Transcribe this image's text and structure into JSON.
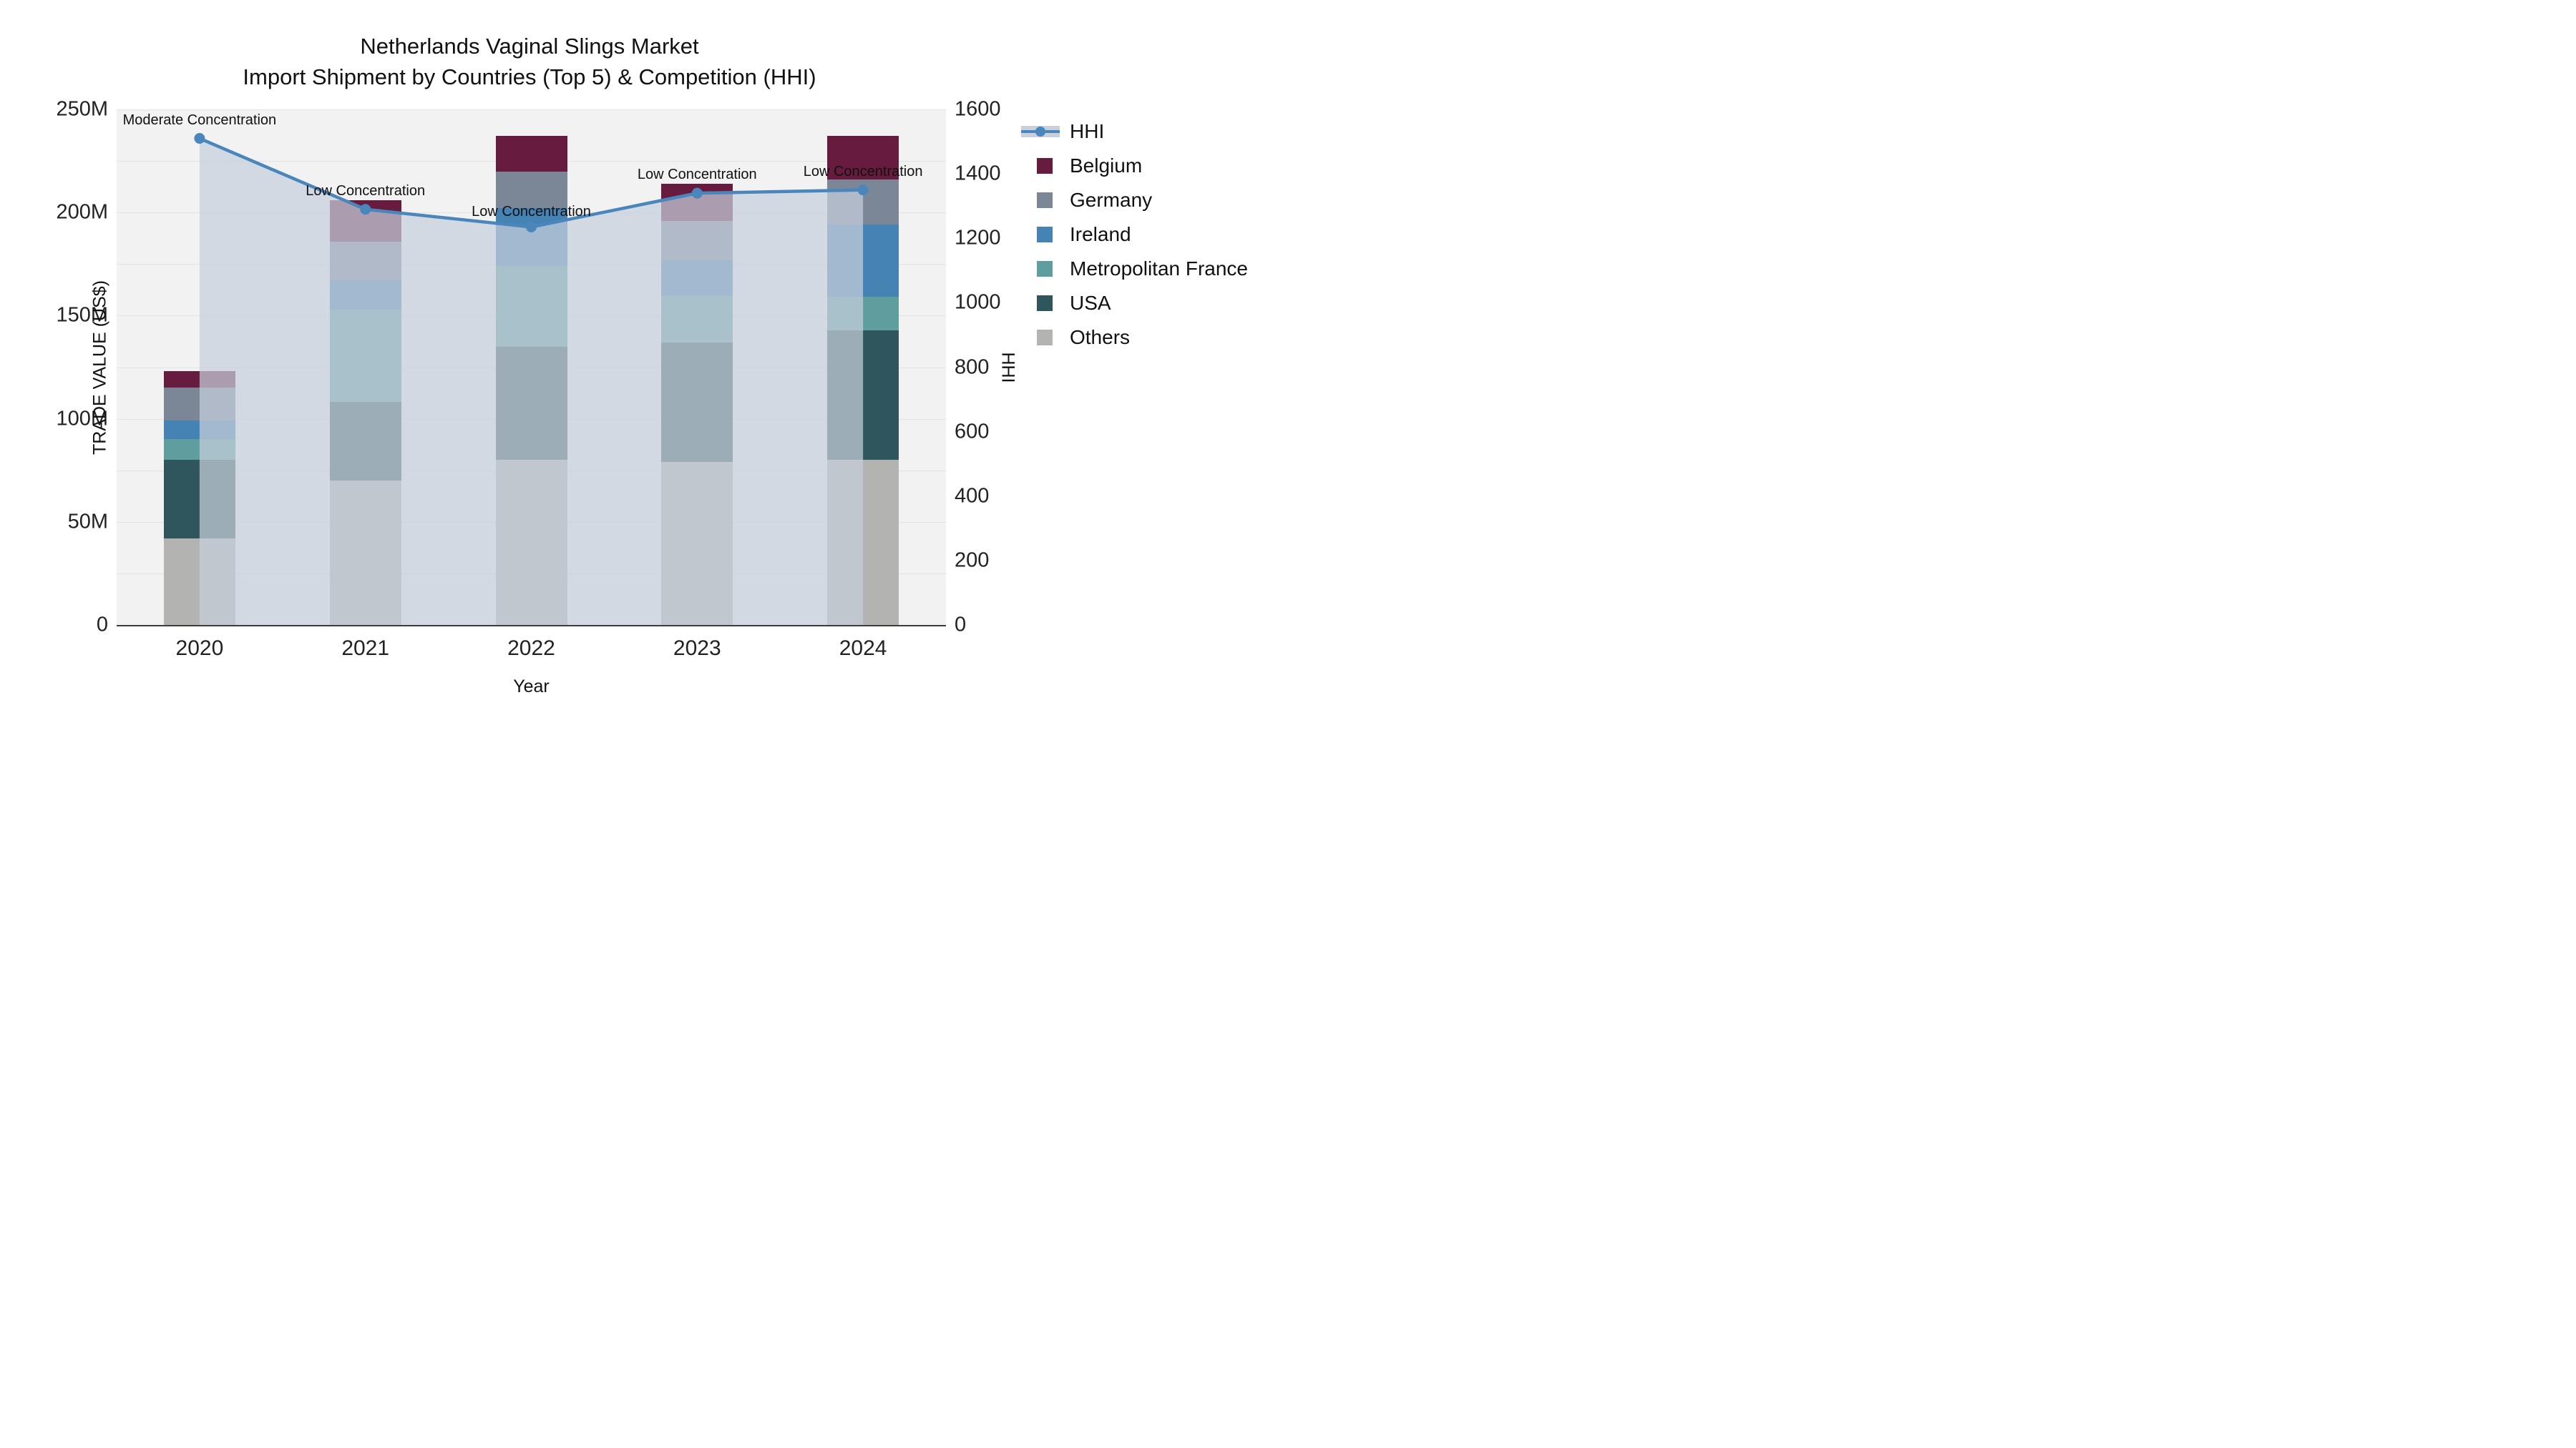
{
  "title": {
    "line1": "Netherlands Vaginal Slings Market",
    "line2": "Import Shipment by Countries (Top 5) & Competition (HHI)"
  },
  "axes": {
    "x": {
      "title": "Year",
      "categories": [
        "2020",
        "2021",
        "2022",
        "2023",
        "2024"
      ]
    },
    "y_left": {
      "title": "TRADE VALUE (US$)",
      "ticks": [
        {
          "value": 0,
          "label": "0"
        },
        {
          "value": 50,
          "label": "50M"
        },
        {
          "value": 100,
          "label": "100M"
        },
        {
          "value": 150,
          "label": "150M"
        },
        {
          "value": 200,
          "label": "200M"
        },
        {
          "value": 250,
          "label": "250M"
        }
      ],
      "max": 250,
      "gridline_step": 25
    },
    "y_right": {
      "title": "HHI",
      "ticks": [
        {
          "value": 0,
          "label": "0"
        },
        {
          "value": 200,
          "label": "200"
        },
        {
          "value": 400,
          "label": "400"
        },
        {
          "value": 600,
          "label": "600"
        },
        {
          "value": 800,
          "label": "800"
        },
        {
          "value": 1000,
          "label": "1000"
        },
        {
          "value": 1200,
          "label": "1200"
        },
        {
          "value": 1400,
          "label": "1400"
        },
        {
          "value": 1600,
          "label": "1600"
        }
      ],
      "max": 1600
    }
  },
  "chart_data": {
    "type": "bar",
    "subtype": "stacked-bars-with-line-overlay",
    "title": "Netherlands Vaginal Slings Market — Import Shipment by Countries (Top 5) & Competition (HHI)",
    "categories": [
      "2020",
      "2021",
      "2022",
      "2023",
      "2024"
    ],
    "value_unit": "million US$ (trade value, left axis)",
    "series": [
      {
        "name": "Belgium",
        "color": "#671c3f",
        "values": [
          8,
          20,
          17,
          18,
          21
        ]
      },
      {
        "name": "Germany",
        "color": "#7b8797",
        "values": [
          16,
          19,
          18,
          19,
          22
        ]
      },
      {
        "name": "Ireland",
        "color": "#4583b5",
        "values": [
          9,
          14,
          28,
          17,
          35
        ]
      },
      {
        "name": "Metropolitan France",
        "color": "#5f9e9e",
        "values": [
          10,
          45,
          39,
          23,
          16
        ]
      },
      {
        "name": "USA",
        "color": "#2f565c",
        "values": [
          38,
          38,
          55,
          58,
          63
        ]
      },
      {
        "name": "Others",
        "color": "#b3b3b1",
        "values": [
          42,
          70,
          80,
          79,
          80
        ]
      }
    ],
    "stack_order_bottom_to_top": [
      "Others",
      "USA",
      "Metropolitan France",
      "Ireland",
      "Germany",
      "Belgium"
    ],
    "stack_totals_millions": [
      123,
      206,
      237,
      214,
      237
    ],
    "line_series": {
      "name": "HHI",
      "axis": "right",
      "color": "#4a86bc",
      "area_fill": "#c6cedb",
      "values": [
        1510,
        1290,
        1235,
        1340,
        1350
      ]
    },
    "annotations": [
      {
        "category": "2020",
        "text": "Moderate Concentration"
      },
      {
        "category": "2021",
        "text": "Low Concentration"
      },
      {
        "category": "2022",
        "text": "Low Concentration"
      },
      {
        "category": "2023",
        "text": "Low Concentration"
      },
      {
        "category": "2024",
        "text": "Low Concentration"
      }
    ],
    "xlabel": "Year",
    "ylabel_left": "TRADE VALUE (US$)",
    "ylabel_right": "HHI",
    "ylim_left_millions": [
      0,
      250
    ],
    "ylim_right": [
      0,
      1600
    ],
    "grid": true,
    "legend_position": "right",
    "plot_background": "#f2f2f3"
  },
  "legend": {
    "items": [
      {
        "label": "HHI",
        "type": "line",
        "color": "#4a86bc"
      },
      {
        "label": "Belgium",
        "type": "swatch",
        "color": "#671c3f"
      },
      {
        "label": "Germany",
        "type": "swatch",
        "color": "#7b8797"
      },
      {
        "label": "Ireland",
        "type": "swatch",
        "color": "#4583b5"
      },
      {
        "label": "Metropolitan France",
        "type": "swatch",
        "color": "#5f9e9e"
      },
      {
        "label": "USA",
        "type": "swatch",
        "color": "#2f565c"
      },
      {
        "label": "Others",
        "type": "swatch",
        "color": "#b3b3b1"
      }
    ]
  }
}
